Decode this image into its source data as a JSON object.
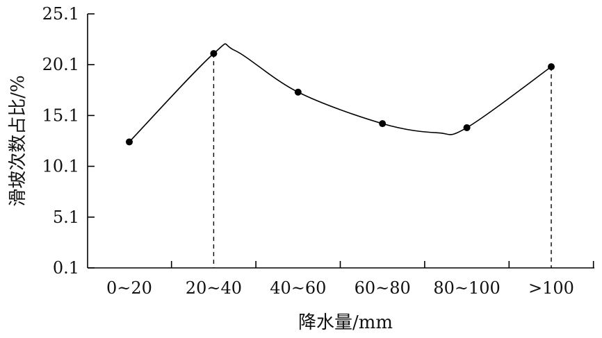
{
  "chart_data": {
    "type": "line",
    "title": "",
    "xlabel": "降水量/mm",
    "ylabel": "滑坡次数占比/%",
    "categories": [
      "0~20",
      "20~40",
      "40~60",
      "60~80",
      "80~100",
      ">100"
    ],
    "series": [
      {
        "values": [
          12.5,
          21.2,
          17.4,
          14.3,
          13.9,
          19.9
        ],
        "curve": "smooth",
        "marker": "filled-circle",
        "color": "#000000"
      }
    ],
    "yticks": [
      0.1,
      5.1,
      10.1,
      15.1,
      20.1,
      25.1
    ],
    "ylim": [
      0.1,
      25.1
    ],
    "grid": false,
    "legend": "none",
    "dashed_drop_lines": [
      {
        "category": "20~40",
        "value": 21.2
      },
      {
        "category": ">100",
        "value": 19.9
      }
    ],
    "curve_extrema": [
      {
        "category_position": 1.25,
        "value": 21.5
      },
      {
        "category_position": 3.65,
        "value": 13.4
      }
    ]
  }
}
